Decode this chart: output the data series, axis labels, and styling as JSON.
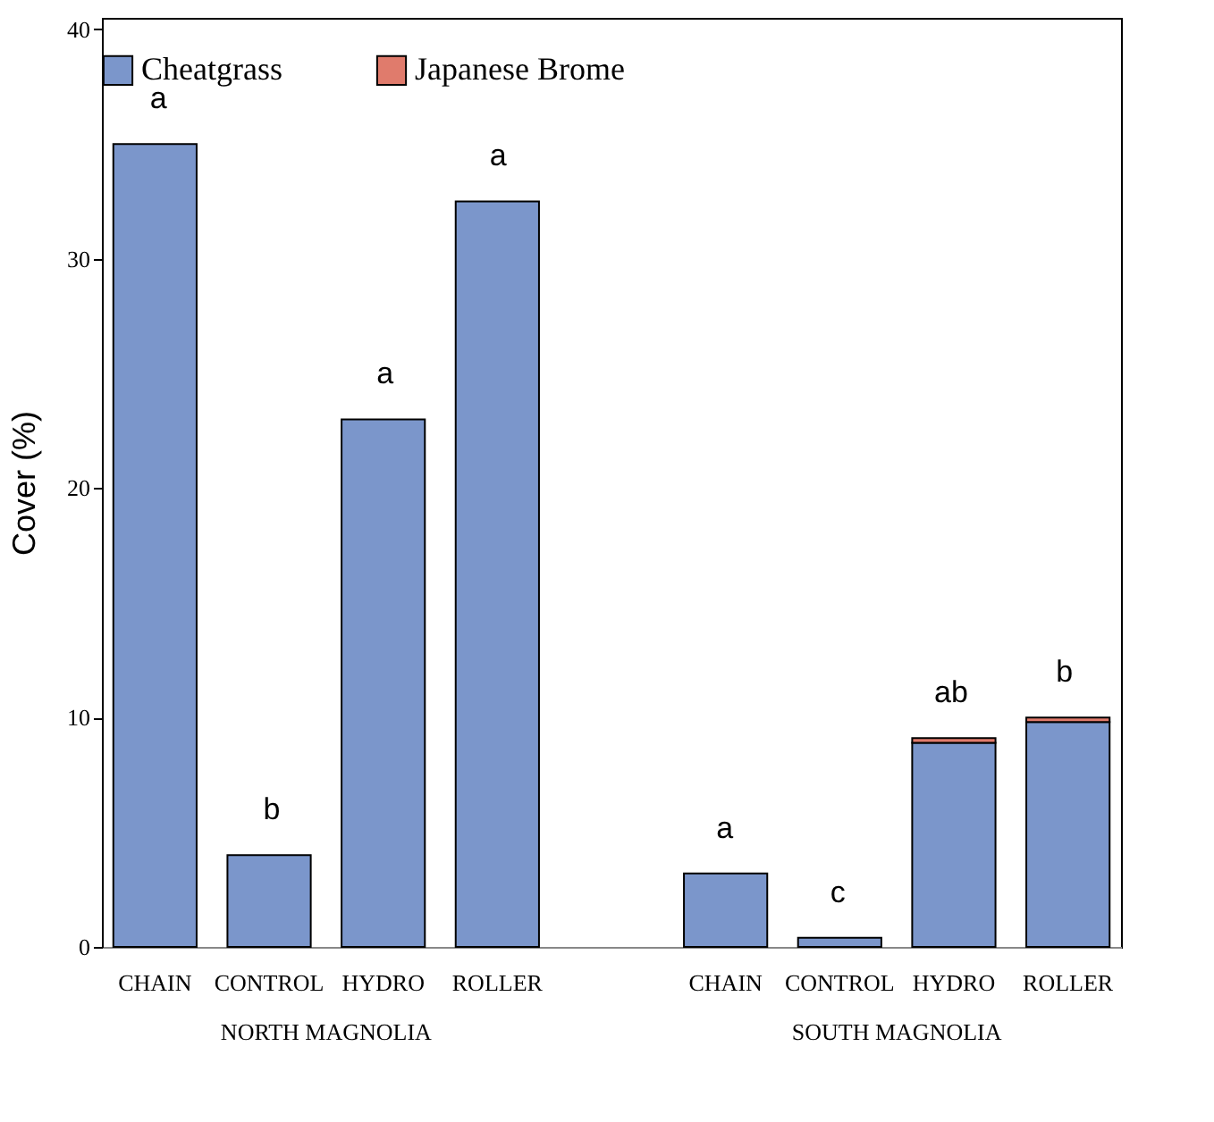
{
  "chart_data": {
    "type": "bar",
    "ylabel": "Cover (%)",
    "categories": [
      "CHAIN",
      "CONTROL",
      "HYDRO",
      "ROLLER",
      "CHAIN",
      "CONTROL",
      "HYDRO",
      "ROLLER"
    ],
    "series": [
      {
        "name": "Cheatgrass",
        "color": "#7b96cb",
        "values": [
          35.0,
          4.0,
          23.0,
          32.5,
          3.2,
          0.4,
          8.9,
          9.8
        ]
      },
      {
        "name": "Japanese Brome",
        "color": "#e07b6c",
        "values": [
          null,
          null,
          null,
          null,
          null,
          null,
          0.2,
          0.2
        ]
      }
    ],
    "stacked": true,
    "ylim": [
      0,
      40.5
    ],
    "yticks": [
      0,
      10,
      20,
      30,
      40
    ],
    "grid": false,
    "legend": "top",
    "annotations": [
      "a",
      "b",
      "a",
      "a",
      "a",
      "c",
      "ab",
      "b",
      "NORTH MAGNOLIA",
      "SOUTH MAGNOLIA"
    ]
  }
}
